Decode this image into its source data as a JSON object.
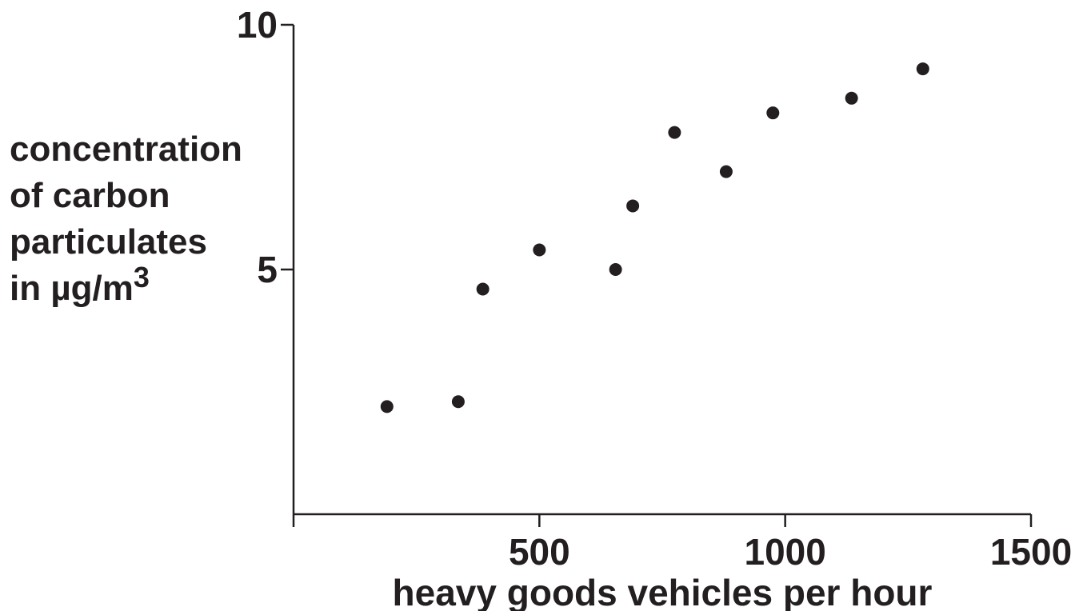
{
  "chart_data": {
    "type": "scatter",
    "xlabel": "heavy goods vehicles per hour",
    "ylabel_lines": [
      "concentration",
      "of carbon",
      "particulates"
    ],
    "ylabel_last": "in µg/m",
    "ylabel_superscript": "3",
    "x_ticks": [
      "500",
      "1000",
      "1500"
    ],
    "y_ticks": [
      "5",
      "10"
    ],
    "xlim": [
      0,
      1500
    ],
    "ylim": [
      0,
      10
    ],
    "grid": false,
    "points": [
      {
        "x": 190,
        "y": 2.2
      },
      {
        "x": 335,
        "y": 2.3
      },
      {
        "x": 385,
        "y": 4.6
      },
      {
        "x": 500,
        "y": 5.4
      },
      {
        "x": 655,
        "y": 5.0
      },
      {
        "x": 690,
        "y": 6.3
      },
      {
        "x": 775,
        "y": 7.8
      },
      {
        "x": 880,
        "y": 7.0
      },
      {
        "x": 975,
        "y": 8.2
      },
      {
        "x": 1135,
        "y": 8.5
      },
      {
        "x": 1280,
        "y": 9.1
      }
    ]
  },
  "colors": {
    "ink": "#231f20",
    "background": "#ffffff"
  }
}
